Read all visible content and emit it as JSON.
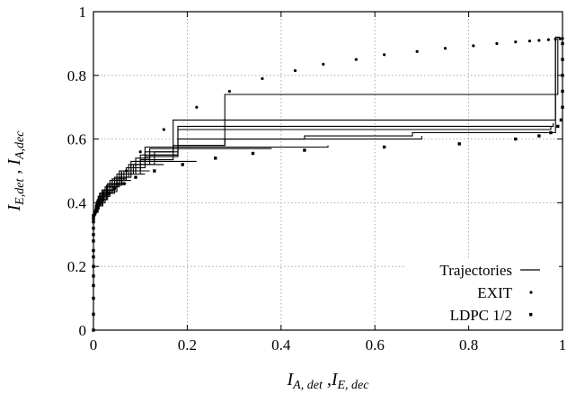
{
  "chart_data": {
    "type": "line",
    "xlabel": {
      "main1": "I",
      "sub1": "A, det",
      "sep": " ,",
      "main2": "I",
      "sub2": "E, dec"
    },
    "ylabel": {
      "main1": "I",
      "sub1": "E,det",
      "sep": " , ",
      "main2": "I",
      "sub2": "A,dec"
    },
    "xlim": [
      0,
      1
    ],
    "ylim": [
      0,
      1
    ],
    "x_ticks": [
      0,
      0.2,
      0.4,
      0.6,
      0.8,
      1
    ],
    "y_ticks": [
      0,
      0.2,
      0.4,
      0.6,
      0.8,
      1
    ],
    "x_tick_labels": [
      "0",
      "0.2",
      "0.4",
      "0.6",
      "0.8",
      "1"
    ],
    "y_tick_labels": [
      "0",
      "0.2",
      "0.4",
      "0.6",
      "0.8",
      "1"
    ],
    "grid": true,
    "legend_position": "bottom-right",
    "series": [
      {
        "name": "Trajectories",
        "style": "line",
        "color": "#000000",
        "trajectories": [
          [
            [
              0.002,
              0.35
            ],
            [
              0.002,
              0.37
            ],
            [
              0.01,
              0.37
            ],
            [
              0.01,
              0.39
            ],
            [
              0.02,
              0.39
            ],
            [
              0.02,
              0.41
            ],
            [
              0.03,
              0.41
            ],
            [
              0.03,
              0.43
            ],
            [
              0.045,
              0.43
            ],
            [
              0.045,
              0.46
            ],
            [
              0.06,
              0.46
            ],
            [
              0.06,
              0.49
            ],
            [
              0.085,
              0.49
            ],
            [
              0.085,
              0.52
            ],
            [
              0.12,
              0.52
            ],
            [
              0.12,
              0.55
            ],
            [
              0.18,
              0.55
            ],
            [
              0.18,
              0.58
            ],
            [
              0.28,
              0.58
            ],
            [
              0.28,
              0.6
            ],
            [
              0.45,
              0.6
            ],
            [
              0.45,
              0.61
            ],
            [
              0.68,
              0.61
            ],
            [
              0.68,
              0.62
            ],
            [
              0.985,
              0.62
            ],
            [
              0.985,
              0.92
            ],
            [
              0.995,
              0.92
            ]
          ],
          [
            [
              0.003,
              0.355
            ],
            [
              0.003,
              0.38
            ],
            [
              0.012,
              0.38
            ],
            [
              0.012,
              0.4
            ],
            [
              0.025,
              0.4
            ],
            [
              0.025,
              0.43
            ],
            [
              0.04,
              0.43
            ],
            [
              0.04,
              0.455
            ],
            [
              0.06,
              0.455
            ],
            [
              0.06,
              0.49
            ],
            [
              0.1,
              0.49
            ],
            [
              0.1,
              0.535
            ],
            [
              0.17,
              0.535
            ],
            [
              0.17,
              0.58
            ],
            [
              0.28,
              0.58
            ],
            [
              0.28,
              0.74
            ],
            [
              0.99,
              0.74
            ],
            [
              0.99,
              0.92
            ]
          ],
          [
            [
              0.004,
              0.36
            ],
            [
              0.004,
              0.39
            ],
            [
              0.015,
              0.39
            ],
            [
              0.015,
              0.42
            ],
            [
              0.03,
              0.42
            ],
            [
              0.03,
              0.45
            ],
            [
              0.05,
              0.45
            ],
            [
              0.05,
              0.48
            ],
            [
              0.08,
              0.48
            ],
            [
              0.08,
              0.52
            ],
            [
              0.13,
              0.52
            ],
            [
              0.13,
              0.56
            ],
            [
              0.17,
              0.56
            ],
            [
              0.17,
              0.66
            ],
            [
              0.985,
              0.66
            ],
            [
              0.985,
              0.91
            ]
          ],
          [
            [
              0.005,
              0.36
            ],
            [
              0.005,
              0.395
            ],
            [
              0.018,
              0.395
            ],
            [
              0.018,
              0.425
            ],
            [
              0.035,
              0.425
            ],
            [
              0.035,
              0.46
            ],
            [
              0.06,
              0.46
            ],
            [
              0.06,
              0.5
            ],
            [
              0.1,
              0.5
            ],
            [
              0.1,
              0.55
            ],
            [
              0.18,
              0.55
            ],
            [
              0.18,
              0.64
            ],
            [
              0.98,
              0.64
            ],
            [
              0.98,
              0.65
            ]
          ],
          [
            [
              0.006,
              0.365
            ],
            [
              0.006,
              0.4
            ],
            [
              0.02,
              0.4
            ],
            [
              0.02,
              0.435
            ],
            [
              0.04,
              0.435
            ],
            [
              0.04,
              0.47
            ],
            [
              0.07,
              0.47
            ],
            [
              0.07,
              0.51
            ],
            [
              0.11,
              0.51
            ],
            [
              0.11,
              0.545
            ],
            [
              0.18,
              0.545
            ],
            [
              0.18,
              0.63
            ],
            [
              0.975,
              0.63
            ],
            [
              0.975,
              0.64
            ]
          ],
          [
            [
              0.007,
              0.37
            ],
            [
              0.007,
              0.405
            ],
            [
              0.022,
              0.405
            ],
            [
              0.022,
              0.44
            ],
            [
              0.045,
              0.44
            ],
            [
              0.045,
              0.48
            ],
            [
              0.075,
              0.48
            ],
            [
              0.075,
              0.52
            ],
            [
              0.11,
              0.52
            ],
            [
              0.11,
              0.56
            ],
            [
              0.18,
              0.56
            ],
            [
              0.18,
              0.6
            ],
            [
              0.7,
              0.6
            ],
            [
              0.7,
              0.61
            ]
          ],
          [
            [
              0.008,
              0.37
            ],
            [
              0.008,
              0.41
            ],
            [
              0.025,
              0.41
            ],
            [
              0.025,
              0.45
            ],
            [
              0.05,
              0.45
            ],
            [
              0.05,
              0.49
            ],
            [
              0.08,
              0.49
            ],
            [
              0.08,
              0.53
            ],
            [
              0.11,
              0.53
            ],
            [
              0.11,
              0.575
            ],
            [
              0.5,
              0.575
            ],
            [
              0.5,
              0.58
            ]
          ],
          [
            [
              0.009,
              0.375
            ],
            [
              0.009,
              0.41
            ],
            [
              0.028,
              0.41
            ],
            [
              0.028,
              0.455
            ],
            [
              0.055,
              0.455
            ],
            [
              0.055,
              0.5
            ],
            [
              0.09,
              0.5
            ],
            [
              0.09,
              0.54
            ],
            [
              0.12,
              0.54
            ],
            [
              0.12,
              0.57
            ],
            [
              0.38,
              0.57
            ]
          ],
          [
            [
              0.01,
              0.38
            ],
            [
              0.01,
              0.42
            ],
            [
              0.03,
              0.42
            ],
            [
              0.03,
              0.46
            ],
            [
              0.06,
              0.46
            ],
            [
              0.06,
              0.5
            ],
            [
              0.09,
              0.5
            ],
            [
              0.09,
              0.53
            ],
            [
              0.22,
              0.53
            ]
          ],
          [
            [
              0.012,
              0.385
            ],
            [
              0.012,
              0.42
            ],
            [
              0.035,
              0.42
            ],
            [
              0.035,
              0.46
            ],
            [
              0.06,
              0.46
            ],
            [
              0.06,
              0.49
            ],
            [
              0.09,
              0.49
            ],
            [
              0.09,
              0.52
            ],
            [
              0.15,
              0.52
            ]
          ],
          [
            [
              0.013,
              0.39
            ],
            [
              0.013,
              0.43
            ],
            [
              0.035,
              0.43
            ],
            [
              0.035,
              0.47
            ],
            [
              0.065,
              0.47
            ],
            [
              0.065,
              0.5
            ],
            [
              0.12,
              0.5
            ]
          ],
          [
            [
              0.015,
              0.39
            ],
            [
              0.015,
              0.43
            ],
            [
              0.04,
              0.43
            ],
            [
              0.04,
              0.475
            ],
            [
              0.07,
              0.475
            ],
            [
              0.07,
              0.49
            ],
            [
              0.11,
              0.49
            ]
          ],
          [
            [
              0.018,
              0.4
            ],
            [
              0.018,
              0.44
            ],
            [
              0.045,
              0.44
            ],
            [
              0.045,
              0.47
            ],
            [
              0.08,
              0.47
            ]
          ],
          [
            [
              0.02,
              0.405
            ],
            [
              0.02,
              0.435
            ],
            [
              0.05,
              0.435
            ],
            [
              0.05,
              0.46
            ],
            [
              0.07,
              0.46
            ]
          ],
          [
            [
              0.01,
              0.39
            ],
            [
              0.01,
              0.41
            ],
            [
              0.02,
              0.41
            ],
            [
              0.02,
              0.43
            ],
            [
              0.04,
              0.43
            ],
            [
              0.04,
              0.45
            ],
            [
              0.055,
              0.45
            ],
            [
              0.055,
              0.48
            ],
            [
              0.06,
              0.48
            ]
          ],
          [
            [
              0.013,
              0.395
            ],
            [
              0.013,
              0.42
            ],
            [
              0.03,
              0.42
            ],
            [
              0.03,
              0.44
            ],
            [
              0.045,
              0.44
            ]
          ]
        ]
      },
      {
        "name": "EXIT",
        "style": "dots",
        "color": "#000000",
        "x": [
          0.0,
          0.005,
          0.01,
          0.02,
          0.03,
          0.05,
          0.07,
          0.1,
          0.15,
          0.22,
          0.29,
          0.36,
          0.43,
          0.49,
          0.56,
          0.62,
          0.69,
          0.75,
          0.81,
          0.86,
          0.9,
          0.93,
          0.95,
          0.97,
          0.985,
          0.995,
          1.0
        ],
        "y": [
          0.35,
          0.37,
          0.385,
          0.41,
          0.43,
          0.46,
          0.5,
          0.56,
          0.63,
          0.7,
          0.75,
          0.79,
          0.815,
          0.835,
          0.85,
          0.865,
          0.875,
          0.885,
          0.893,
          0.9,
          0.905,
          0.908,
          0.91,
          0.912,
          0.914,
          0.915,
          0.916
        ]
      },
      {
        "name": "LDPC 1/2",
        "style": "squares",
        "color": "#000000",
        "x": [
          0.0,
          0.0,
          0.0,
          0.0,
          0.0,
          0.0,
          0.0,
          0.0,
          0.0,
          0.0,
          0.0,
          0.0,
          0.0,
          0.0,
          0.003,
          0.007,
          0.012,
          0.02,
          0.03,
          0.045,
          0.065,
          0.09,
          0.13,
          0.19,
          0.26,
          0.34,
          0.45,
          0.62,
          0.78,
          0.9,
          0.95,
          0.975,
          0.99,
          0.997,
          1.0,
          1.0,
          1.0,
          1.0,
          1.0
        ],
        "y": [
          0.0,
          0.05,
          0.1,
          0.14,
          0.17,
          0.2,
          0.23,
          0.25,
          0.28,
          0.3,
          0.32,
          0.34,
          0.35,
          0.36,
          0.37,
          0.385,
          0.4,
          0.415,
          0.43,
          0.445,
          0.46,
          0.48,
          0.5,
          0.52,
          0.54,
          0.555,
          0.565,
          0.575,
          0.585,
          0.6,
          0.61,
          0.62,
          0.64,
          0.66,
          0.7,
          0.75,
          0.8,
          0.85,
          0.9
        ]
      }
    ]
  }
}
